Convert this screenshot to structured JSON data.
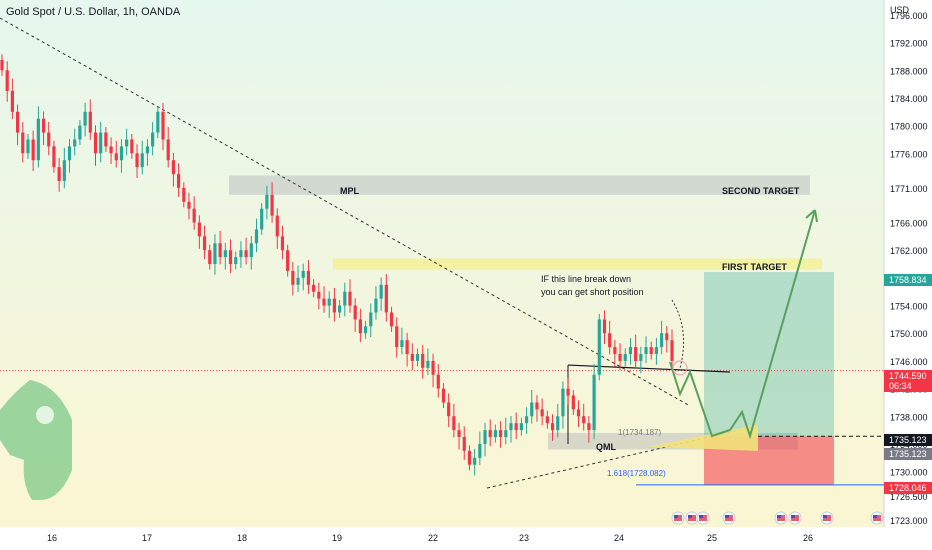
{
  "header": {
    "title": "Gold Spot / U.S. Dollar, 1h, OANDA",
    "currency": "USD"
  },
  "price_axis": {
    "ticks": [
      "1796.000",
      "1792.000",
      "1788.000",
      "1784.000",
      "1780.000",
      "1776.000",
      "1771.000",
      "1766.000",
      "1762.000",
      "1758.000",
      "1754.000",
      "1750.000",
      "1746.000",
      "1742.000",
      "1738.000",
      "1734.000",
      "1730.000",
      "1726.500",
      "1723.000"
    ],
    "tags": [
      {
        "text": "1758.834",
        "value": 1758.834,
        "bg": "#26a69a",
        "fg": "#ffffff"
      },
      {
        "text": "1744.590",
        "value": 1744.59,
        "sub": "06:34",
        "bg": "#f23645",
        "fg": "#ffffff"
      },
      {
        "text": "1735.123",
        "value": 1735.123,
        "bg": "#131722",
        "fg": "#ffffff"
      },
      {
        "text": "1735.123",
        "value": 1735.123,
        "bg": "#787b86",
        "fg": "#ffffff"
      },
      {
        "text": "1728.046",
        "value": 1728.046,
        "bg": "#f23645",
        "fg": "#ffffff"
      }
    ]
  },
  "time_axis": {
    "labels": [
      "16",
      "17",
      "18",
      "19",
      "22",
      "23",
      "24",
      "25",
      "26"
    ]
  },
  "annotations": {
    "mpl": "MPL",
    "second_target": "SECOND TARGET",
    "first_target": "FIRST TARGET",
    "break_note_line1": "IF this line break down",
    "break_note_line2": "you can get short position",
    "qml": "QML",
    "fib_1": "1(1734.187)",
    "fib_1618": "1.618(1728.082)"
  },
  "colors": {
    "up": "#26a69a",
    "down": "#f23645",
    "zone_gray": "#b0b3b8",
    "zone_yellow": "#f5ee7a",
    "profit": "#26a69a",
    "loss": "#f23645",
    "background_top": "#e6f7ee",
    "background_bottom": "#fbf6d2"
  },
  "chart_data": {
    "type": "candlestick",
    "symbol": "XAUUSD",
    "timeframe": "1h",
    "y_range": [
      1722.0,
      1797.0
    ],
    "closes": [
      1788,
      1785,
      1782,
      1779,
      1776,
      1778,
      1775,
      1781,
      1779,
      1777,
      1774,
      1772,
      1775,
      1777,
      1778,
      1780,
      1782,
      1779,
      1776,
      1779,
      1777,
      1776,
      1775,
      1777,
      1778,
      1776,
      1774,
      1776,
      1777,
      1779,
      1782,
      1778,
      1775,
      1773,
      1771,
      1769,
      1768,
      1766,
      1764,
      1762,
      1760,
      1763,
      1761,
      1762,
      1760,
      1761,
      1762,
      1761,
      1763,
      1765,
      1768,
      1770,
      1767,
      1764,
      1762,
      1759,
      1757,
      1758,
      1759,
      1757,
      1756,
      1755,
      1754,
      1755,
      1753,
      1754,
      1756,
      1754,
      1752,
      1750,
      1751,
      1753,
      1755,
      1757,
      1753,
      1751,
      1748,
      1749,
      1747,
      1746,
      1747,
      1745,
      1746,
      1744,
      1742,
      1740,
      1738,
      1736,
      1735,
      1733,
      1731,
      1732,
      1734,
      1736,
      1735,
      1736,
      1735,
      1736,
      1737,
      1736,
      1737,
      1738,
      1740,
      1739,
      1738,
      1737,
      1736,
      1738,
      1742,
      1741,
      1739,
      1738,
      1737,
      1736,
      1744,
      1752,
      1750,
      1748,
      1747,
      1746,
      1747,
      1748,
      1746,
      1747,
      1748,
      1747,
      1748,
      1750,
      1749,
      1746
    ],
    "zones": [
      {
        "label": "MPL",
        "from": 1770,
        "to": 1772.8
      },
      {
        "label": "FIRST TARGET",
        "from": 1759.2,
        "to": 1760.8
      },
      {
        "label": "QML",
        "from": 1733.2,
        "to": 1735.6
      }
    ],
    "levels": {
      "first_target": 1758.834,
      "current": 1744.59,
      "entry": 1735.123,
      "stop": 1728.046
    }
  }
}
